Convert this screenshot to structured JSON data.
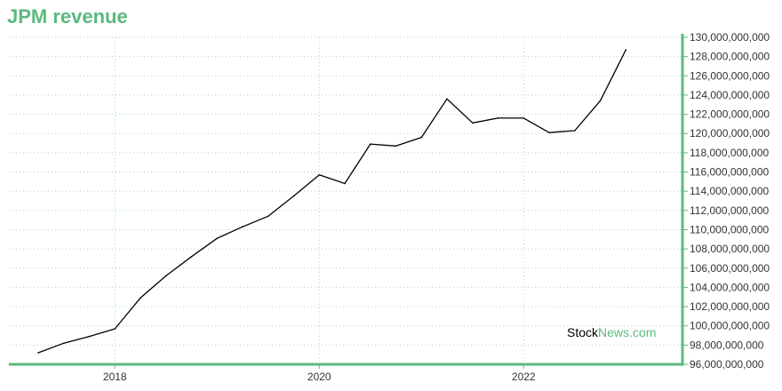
{
  "title": "JPM revenue",
  "colors": {
    "accent": "#5ab97e",
    "grid": "#a8d8bb",
    "line": "#000000",
    "text": "#333333"
  },
  "watermark": {
    "part1": "Stock",
    "part2": "News.com"
  },
  "chart_data": {
    "type": "line",
    "title": "JPM revenue",
    "xlabel": "",
    "ylabel": "",
    "x_ticks": [
      2018,
      2020,
      2022
    ],
    "xlim": [
      2017.25,
      2023.25
    ],
    "ylim": [
      96000000000,
      130000000000
    ],
    "y_tick_step": 2000000000,
    "grid": true,
    "y_axis_position": "right",
    "series": [
      {
        "x": [
          2017.25,
          2017.5,
          2017.75,
          2018.0,
          2018.25,
          2018.5,
          2018.75,
          2019.0,
          2019.25,
          2019.5,
          2019.75,
          2020.0,
          2020.25,
          2020.5,
          2020.75,
          2021.0,
          2021.25,
          2021.5,
          2021.75,
          2022.0,
          2022.25,
          2022.5,
          2022.75,
          2023.0
        ],
        "values": [
          97200000000,
          98200000000,
          98900000000,
          99700000000,
          102900000000,
          105200000000,
          107200000000,
          109100000000,
          110300000000,
          111400000000,
          113500000000,
          115700000000,
          114800000000,
          118900000000,
          118700000000,
          119600000000,
          123600000000,
          121100000000,
          121600000000,
          121600000000,
          120100000000,
          120300000000,
          123400000000,
          128700000000
        ]
      }
    ]
  }
}
